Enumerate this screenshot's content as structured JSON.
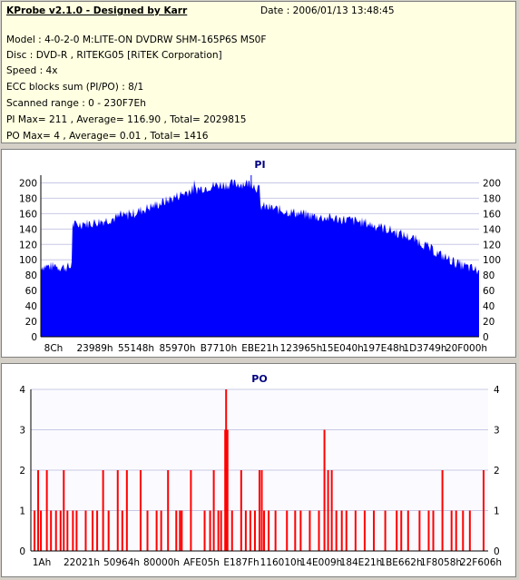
{
  "info": {
    "title": "KProbe v2.1.0 - Designed by Karr",
    "date": "Date : 2006/01/13 13:48:45",
    "lines": [
      "Model : 4-0-2-0 M:LITE-ON DVDRW SHM-165P6S MS0F",
      "Disc : DVD-R , RITEKG05 [RiTEK Corporation]",
      "Speed : 4x",
      "ECC blocks sum (PI/PO) : 8/1",
      "Scanned range : 0 - 230F7Eh",
      "PI Max= 211 , Average= 116.90 , Total= 2029815",
      "PO Max= 4 , Average= 0.01 , Total= 1416"
    ]
  },
  "colors": {
    "pi_fill": "#0000ff",
    "po_bar": "#ff0000",
    "grid": "#c8c8e6",
    "axis_text": "#000000",
    "title_text": "#000080",
    "panel_bg": "#ffffff",
    "info_bg": "#ffffe1"
  },
  "chart_data": [
    {
      "type": "area",
      "title": "PI",
      "ylim": [
        0,
        210
      ],
      "yticks": [
        0,
        20,
        40,
        60,
        80,
        100,
        120,
        140,
        160,
        180,
        200
      ],
      "xticks": [
        "8Ch",
        "23989h",
        "55148h",
        "85970h",
        "B7710h",
        "EBE21h",
        "123965h",
        "15E040h",
        "197E48h",
        "1D3749h",
        "20F000h"
      ],
      "grid": true,
      "profile": [
        [
          0.0,
          92
        ],
        [
          0.07,
          90
        ],
        [
          0.072,
          145
        ],
        [
          0.12,
          148
        ],
        [
          0.2,
          158
        ],
        [
          0.28,
          175
        ],
        [
          0.34,
          190
        ],
        [
          0.4,
          197
        ],
        [
          0.46,
          199
        ],
        [
          0.48,
          200
        ],
        [
          0.5,
          190
        ],
        [
          0.5,
          170
        ],
        [
          0.56,
          163
        ],
        [
          0.64,
          155
        ],
        [
          0.7,
          152
        ],
        [
          0.74,
          148
        ],
        [
          0.8,
          138
        ],
        [
          0.86,
          125
        ],
        [
          0.9,
          110
        ],
        [
          0.95,
          95
        ],
        [
          1.0,
          85
        ]
      ]
    },
    {
      "type": "bar",
      "title": "PO",
      "ylim": [
        0,
        4
      ],
      "yticks": [
        0,
        1,
        2,
        3,
        4
      ],
      "xticks": [
        "1Ah",
        "22021h",
        "50964h",
        "80000h",
        "AFE05h",
        "E187Fh",
        "116010h",
        "14E009h",
        "184E21h",
        "1BE662h",
        "1F8058h",
        "22F606h"
      ],
      "grid": true,
      "spikes": [
        [
          0.008,
          1
        ],
        [
          0.016,
          2
        ],
        [
          0.022,
          1
        ],
        [
          0.035,
          2
        ],
        [
          0.044,
          1
        ],
        [
          0.055,
          1
        ],
        [
          0.065,
          1
        ],
        [
          0.072,
          2
        ],
        [
          0.08,
          1
        ],
        [
          0.092,
          1
        ],
        [
          0.1,
          1
        ],
        [
          0.12,
          1
        ],
        [
          0.135,
          1
        ],
        [
          0.145,
          1
        ],
        [
          0.158,
          2
        ],
        [
          0.17,
          1
        ],
        [
          0.19,
          2
        ],
        [
          0.2,
          1
        ],
        [
          0.21,
          2
        ],
        [
          0.24,
          2
        ],
        [
          0.255,
          1
        ],
        [
          0.275,
          1
        ],
        [
          0.285,
          1
        ],
        [
          0.3,
          2
        ],
        [
          0.318,
          1
        ],
        [
          0.326,
          1
        ],
        [
          0.33,
          1
        ],
        [
          0.35,
          2
        ],
        [
          0.38,
          1
        ],
        [
          0.392,
          1
        ],
        [
          0.4,
          2
        ],
        [
          0.41,
          1
        ],
        [
          0.416,
          1
        ],
        [
          0.425,
          3
        ],
        [
          0.427,
          4
        ],
        [
          0.43,
          3
        ],
        [
          0.44,
          1
        ],
        [
          0.46,
          2
        ],
        [
          0.47,
          1
        ],
        [
          0.48,
          1
        ],
        [
          0.49,
          1
        ],
        [
          0.5,
          2
        ],
        [
          0.505,
          2
        ],
        [
          0.51,
          1
        ],
        [
          0.52,
          1
        ],
        [
          0.535,
          1
        ],
        [
          0.56,
          1
        ],
        [
          0.578,
          1
        ],
        [
          0.59,
          1
        ],
        [
          0.61,
          1
        ],
        [
          0.63,
          1
        ],
        [
          0.642,
          3
        ],
        [
          0.65,
          2
        ],
        [
          0.658,
          2
        ],
        [
          0.668,
          1
        ],
        [
          0.68,
          1
        ],
        [
          0.69,
          1
        ],
        [
          0.71,
          1
        ],
        [
          0.73,
          1
        ],
        [
          0.75,
          1
        ],
        [
          0.775,
          1
        ],
        [
          0.8,
          1
        ],
        [
          0.81,
          1
        ],
        [
          0.825,
          1
        ],
        [
          0.85,
          1
        ],
        [
          0.87,
          1
        ],
        [
          0.88,
          1
        ],
        [
          0.9,
          2
        ],
        [
          0.92,
          1
        ],
        [
          0.93,
          1
        ],
        [
          0.945,
          1
        ],
        [
          0.96,
          1
        ],
        [
          0.99,
          2
        ]
      ]
    }
  ]
}
